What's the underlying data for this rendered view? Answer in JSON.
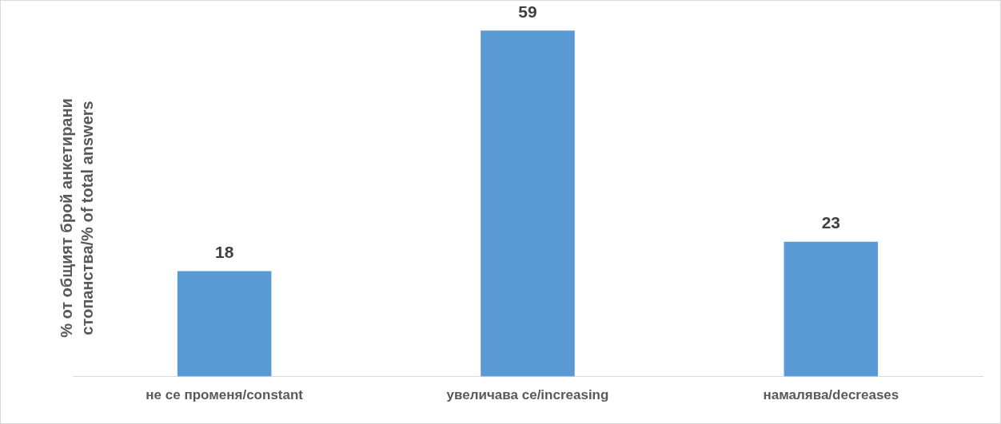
{
  "chart_data": {
    "type": "bar",
    "ylabel": "% от общият брой анкетирани стопанства/% of total answers",
    "categories": [
      "не се променя/constant",
      "увеличава се/increasing",
      "намалява/decreases"
    ],
    "values": [
      18,
      59,
      23
    ],
    "color": "#5b9bd5",
    "data_labels": true,
    "grid": false,
    "legend": false
  }
}
